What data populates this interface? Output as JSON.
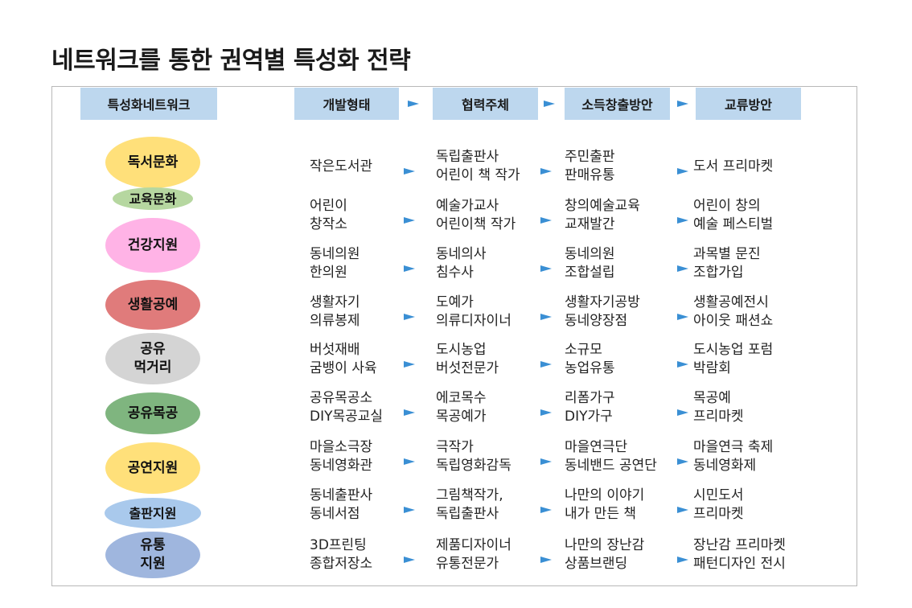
{
  "title": "네트워크를 통한 권역별 특성화 전략",
  "colors": {
    "header_bg": "#bdd7ee",
    "arrow": "#3a8fd4",
    "frame": "#b8b8b8"
  },
  "headers": [
    "특성화네트워크",
    "개발형태",
    "협력주체",
    "소득창출방안",
    "교류방안"
  ],
  "rows": [
    {
      "network": "독서문화",
      "color": "#ffe07a",
      "cells": [
        "작은도서관",
        "독립출판사\n어린이 책 작가",
        "주민출판\n판매유통",
        "도서 프리마켓"
      ]
    },
    {
      "network": "교육문화",
      "color": "#b6d7a0",
      "cells": [
        "어린이\n창작소",
        "예술가교사\n어린이책 작가",
        "창의예술교육\n교재발간",
        "어린이 창의\n예술 페스티벌"
      ]
    },
    {
      "network": "건강지원",
      "color": "#ffb3e6",
      "cells": [
        "동네의원\n한의원",
        "동네의사\n침수사",
        "동네의원\n조합설립",
        "과목별 문진\n조합가입"
      ]
    },
    {
      "network": "생활공예",
      "color": "#e07b7b",
      "cells": [
        "생활자기\n의류봉제",
        "도예가\n의류디자이너",
        "생활자기공방\n동네양장점",
        "생활공예전시\n아이웃 패션쇼"
      ]
    },
    {
      "network": "공유\n먹거리",
      "color": "#d4d4d4",
      "cells": [
        "버섯재배\n굼뱅이 사육",
        "도시농업\n버섯전문가",
        "소규모\n농업유통",
        "도시농업 포럼\n박람회"
      ]
    },
    {
      "network": "공유목공",
      "color": "#7fb57f",
      "cells": [
        "공유목공소\nDIY목공교실",
        "에코목수\n목공예가",
        "리폼가구\nDIY가구",
        "목공예\n프리마켓"
      ]
    },
    {
      "network": "공연지원",
      "color": "#ffe07a",
      "cells": [
        "마을소극장\n동네영화관",
        "극작가\n독립영화감독",
        "마을연극단\n동네밴드 공연단",
        "마을연극 축제\n동네영화제"
      ]
    },
    {
      "network": "출판지원",
      "color": "#a9c9ec",
      "cells": [
        "동네출판사\n동네서점",
        "그림책작가,\n독립출판사",
        "나만의 이야기\n내가 만든 책",
        "시민도서\n프리마켓"
      ]
    },
    {
      "network": "유통\n지원",
      "color": "#9fb6de",
      "cells": [
        "3D프린팅\n종합저장소",
        "제품디자이너\n유통전문가",
        "나만의 장난감\n상품브랜딩",
        "장난감 프리마켓\n패턴디자인 전시"
      ]
    }
  ]
}
